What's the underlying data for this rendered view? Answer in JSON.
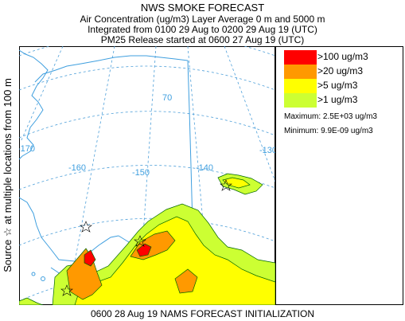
{
  "header": {
    "title": "NWS SMOKE FORECAST",
    "line2": "Air Concentration (ug/m3) Layer Average    0 m and  5000 m",
    "line3": "Integrated from 0100 29 Aug to 0200 29 Aug 19 (UTC)",
    "line4": "PM25 Release started at 0600 27 Aug 19 (UTC)"
  },
  "side_label": "Source ☆  at multiple locations   from   100 m",
  "map": {
    "lat_labels": [
      "70"
    ],
    "lon_labels": [
      "-170",
      "-160",
      "-150",
      "-140",
      "-130"
    ],
    "land_color": "#ffffff",
    "coast_color": "#3f9fdf",
    "grid_color": "#4d9fd9"
  },
  "legend": {
    "items": [
      {
        "label": ">100 ug/m3",
        "color": "#ff0000"
      },
      {
        "label": ">20 ug/m3",
        "color": "#ff9900"
      },
      {
        "label": ">5 ug/m3",
        "color": "#ffff00"
      },
      {
        "label": ">1 ug/m3",
        "color": "#ccff33"
      }
    ],
    "maximum": "Maximum: 2.5E+03 ug/m3",
    "minimum": "Minimum: 9.9E-09 ug/m3"
  },
  "footer": "0600 28 Aug 19 NAMS FORECAST INITIALIZATION"
}
